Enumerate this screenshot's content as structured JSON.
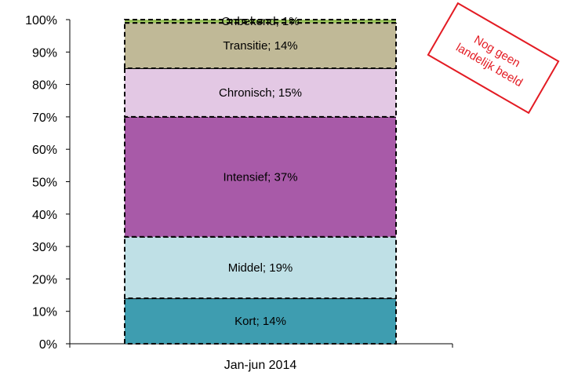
{
  "chart_data": {
    "type": "bar",
    "stacked": true,
    "percent": true,
    "categories": [
      "Jan-jun 2014"
    ],
    "ylim": [
      0,
      100
    ],
    "y_ticks": [
      "0%",
      "10%",
      "20%",
      "30%",
      "40%",
      "50%",
      "60%",
      "70%",
      "80%",
      "90%",
      "100%"
    ],
    "series": [
      {
        "name": "Kort",
        "values": [
          14
        ],
        "label": "Kort; 14%",
        "color": "#3e9db0"
      },
      {
        "name": "Middel",
        "values": [
          19
        ],
        "label": "Middel; 19%",
        "color": "#bfe0e6"
      },
      {
        "name": "Intensief",
        "values": [
          37
        ],
        "label": "Intensief; 37%",
        "color": "#a85aa8"
      },
      {
        "name": "Chronisch",
        "values": [
          15
        ],
        "label": "Chronisch; 15%",
        "color": "#e3c8e4"
      },
      {
        "name": "Transitie",
        "values": [
          14
        ],
        "label": "Transitie; 14%",
        "color": "#c0b997"
      },
      {
        "name": "Onbekend",
        "values": [
          1
        ],
        "label": "Onbekend; 1%",
        "color": "#9ac45a"
      }
    ],
    "grid": false,
    "legend": "none"
  },
  "stamp": {
    "line1": "Nog geen",
    "line2": "landelijk beeld",
    "color": "#e31b23"
  }
}
